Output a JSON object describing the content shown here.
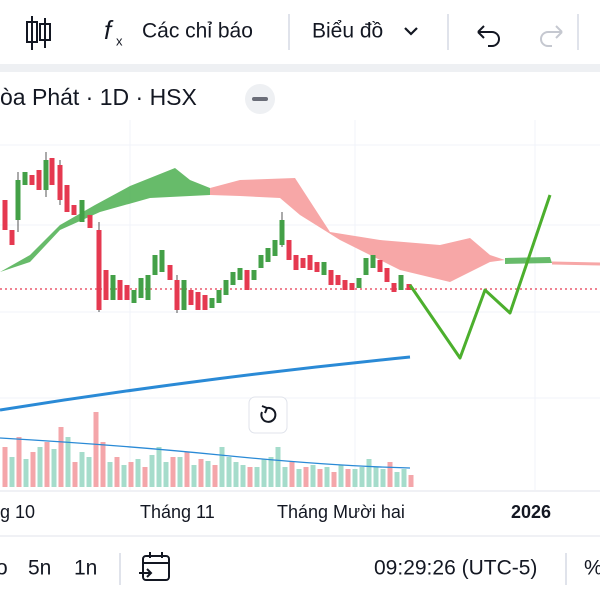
{
  "toolbar": {
    "indicators": "Các chỉ báo",
    "chart_type": "Biểu đồ"
  },
  "symbol": {
    "title": "òa Phát · 1D · HSX"
  },
  "time_axis": {
    "labels": [
      "g 10",
      "Tháng 11",
      "Tháng Mười hai",
      "2026"
    ]
  },
  "bottom_bar": {
    "ranges": [
      "o",
      "5n",
      "1n"
    ],
    "clock": "09:29:26 (UTC-5)",
    "percent": "%"
  }
}
